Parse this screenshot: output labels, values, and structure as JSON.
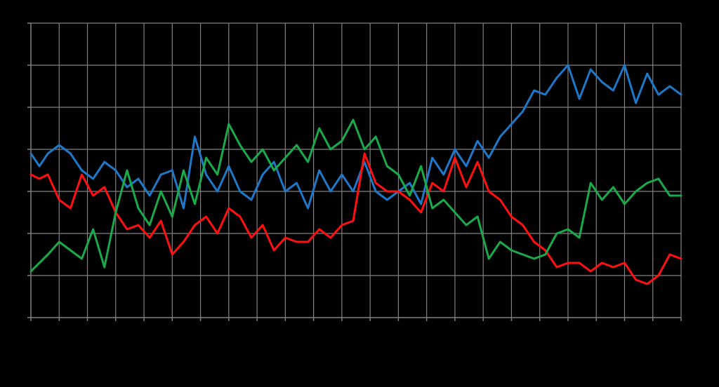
{
  "chart_data": {
    "type": "line",
    "title": "",
    "xlabel": "",
    "ylabel": "",
    "xlim": [
      0,
      230
    ],
    "ylim": [
      0,
      7
    ],
    "grid": true,
    "legend": "none",
    "background": "#000000",
    "grid_color": "#808080",
    "x_gridlines": 23,
    "y_gridlines": 7,
    "series": [
      {
        "color": "#1F77C8",
        "x": [
          0,
          3,
          6,
          10,
          14,
          18,
          22,
          26,
          30,
          34,
          38,
          42,
          46,
          50,
          54,
          58,
          62,
          66,
          70,
          74,
          78,
          82,
          86,
          90,
          94,
          98,
          102,
          106,
          110,
          114,
          118,
          122,
          126,
          130,
          134,
          138,
          142,
          146,
          150,
          154,
          158,
          162,
          166,
          170,
          174,
          178,
          182,
          186,
          190,
          194,
          198,
          202,
          206,
          210,
          214,
          218,
          222,
          226,
          230
        ],
        "values": [
          3.9,
          3.6,
          3.9,
          4.1,
          3.9,
          3.5,
          3.3,
          3.7,
          3.5,
          3.1,
          3.3,
          2.9,
          3.4,
          3.5,
          2.6,
          4.3,
          3.4,
          3.0,
          3.6,
          3.0,
          2.8,
          3.4,
          3.7,
          3.0,
          3.2,
          2.6,
          3.5,
          3.0,
          3.4,
          3.0,
          3.7,
          3.0,
          2.8,
          3.0,
          3.2,
          2.7,
          3.8,
          3.4,
          4.0,
          3.6,
          4.2,
          3.8,
          4.3,
          4.6,
          4.9,
          5.4,
          5.3,
          5.7,
          6.0,
          5.2,
          5.9,
          5.6,
          5.4,
          6.0,
          5.1,
          5.8,
          5.3,
          5.5,
          5.3
        ]
      },
      {
        "color": "#FF1010",
        "x": [
          0,
          3,
          6,
          10,
          14,
          18,
          22,
          26,
          30,
          34,
          38,
          42,
          46,
          50,
          54,
          58,
          62,
          66,
          70,
          74,
          78,
          82,
          86,
          90,
          94,
          98,
          102,
          106,
          110,
          114,
          118,
          122,
          126,
          130,
          134,
          138,
          142,
          146,
          150,
          154,
          158,
          162,
          166,
          170,
          174,
          178,
          182,
          186,
          190,
          194,
          198,
          202,
          206,
          210,
          214,
          218,
          222,
          226,
          230
        ],
        "values": [
          3.4,
          3.3,
          3.4,
          2.8,
          2.6,
          3.4,
          2.9,
          3.1,
          2.5,
          2.1,
          2.2,
          1.9,
          2.3,
          1.5,
          1.8,
          2.2,
          2.4,
          2.0,
          2.6,
          2.4,
          1.9,
          2.2,
          1.6,
          1.9,
          1.8,
          1.8,
          2.1,
          1.9,
          2.2,
          2.3,
          3.9,
          3.2,
          3.0,
          3.0,
          2.8,
          2.5,
          3.2,
          3.0,
          3.8,
          3.1,
          3.7,
          3.0,
          2.8,
          2.4,
          2.2,
          1.8,
          1.6,
          1.2,
          1.3,
          1.3,
          1.1,
          1.3,
          1.2,
          1.3,
          0.9,
          0.8,
          1.0,
          1.5,
          1.4
        ]
      },
      {
        "color": "#1AAA4A",
        "x": [
          0,
          3,
          6,
          10,
          14,
          18,
          22,
          26,
          30,
          34,
          38,
          42,
          46,
          50,
          54,
          58,
          62,
          66,
          70,
          74,
          78,
          82,
          86,
          90,
          94,
          98,
          102,
          106,
          110,
          114,
          118,
          122,
          126,
          130,
          134,
          138,
          142,
          146,
          150,
          154,
          158,
          162,
          166,
          170,
          174,
          178,
          182,
          186,
          190,
          194,
          198,
          202,
          206,
          210,
          214,
          218,
          222,
          226,
          230
        ],
        "values": [
          1.1,
          1.3,
          1.5,
          1.8,
          1.6,
          1.4,
          2.1,
          1.2,
          2.5,
          3.5,
          2.6,
          2.2,
          3.0,
          2.4,
          3.5,
          2.7,
          3.8,
          3.4,
          4.6,
          4.1,
          3.7,
          4.0,
          3.5,
          3.8,
          4.1,
          3.7,
          4.5,
          4.0,
          4.2,
          4.7,
          4.0,
          4.3,
          3.6,
          3.4,
          2.9,
          3.6,
          2.6,
          2.8,
          2.5,
          2.2,
          2.4,
          1.4,
          1.8,
          1.6,
          1.5,
          1.4,
          1.5,
          2.0,
          2.1,
          1.9,
          3.2,
          2.8,
          3.1,
          2.7,
          3.0,
          3.2,
          3.3,
          2.9,
          2.9
        ]
      }
    ]
  }
}
